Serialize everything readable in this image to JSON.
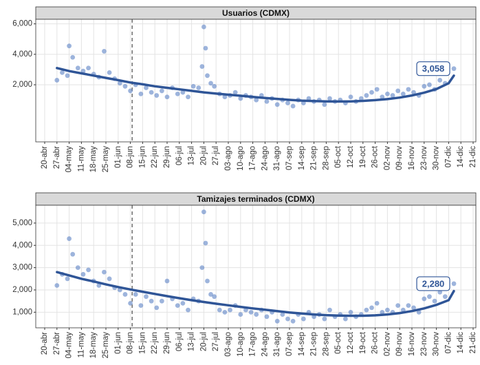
{
  "chart_data": [
    {
      "type": "scatter",
      "title": "Usuarios (CDMX)",
      "xticks": [
        "20-abr",
        "27-abr",
        "04-may",
        "11-may",
        "18-may",
        "25-may",
        "01-jun",
        "08-jun",
        "15-jun",
        "22-jun",
        "29-jun",
        "06-jul",
        "13-jul",
        "20-jul",
        "27-jul",
        "03-ago",
        "10-ago",
        "17-ago",
        "24-ago",
        "31-ago",
        "07-sep",
        "14-sep",
        "21-sep",
        "28-sep",
        "05-oct",
        "12-oct",
        "19-oct",
        "26-oct",
        "02-nov",
        "09-nov",
        "16-nov",
        "23-nov",
        "30-nov",
        "07-dic",
        "14-dic",
        "21-dic"
      ],
      "ylim": [
        -1750,
        6300
      ],
      "yticks": [
        {
          "value": 2000,
          "label": "2,000"
        },
        {
          "value": 4000,
          "label": "4,000"
        },
        {
          "value": 6000,
          "label": "6,000"
        }
      ],
      "grid": true,
      "vline": "09-jun",
      "points": {
        "color": "#5b82c4",
        "x": [
          "27-abr",
          "30-abr",
          "03-may",
          "04-may",
          "06-may",
          "09-may",
          "12-may",
          "15-may",
          "18-may",
          "21-may",
          "24-may",
          "27-may",
          "30-may",
          "02-jun",
          "05-jun",
          "08-jun",
          "11-jun",
          "14-jun",
          "17-jun",
          "20-jun",
          "23-jun",
          "26-jun",
          "29-jun",
          "02-jul",
          "05-jul",
          "08-jul",
          "11-jul",
          "14-jul",
          "17-jul",
          "19-jul",
          "20-jul",
          "21-jul",
          "22-jul",
          "24-jul",
          "26-jul",
          "29-jul",
          "01-ago",
          "04-ago",
          "07-ago",
          "10-ago",
          "13-ago",
          "16-ago",
          "19-ago",
          "22-ago",
          "25-ago",
          "28-ago",
          "31-ago",
          "03-sep",
          "06-sep",
          "09-sep",
          "12-sep",
          "15-sep",
          "18-sep",
          "21-sep",
          "24-sep",
          "27-sep",
          "30-sep",
          "03-oct",
          "06-oct",
          "09-oct",
          "12-oct",
          "15-oct",
          "18-oct",
          "21-oct",
          "24-oct",
          "27-oct",
          "30-oct",
          "02-nov",
          "05-nov",
          "08-nov",
          "11-nov",
          "14-nov",
          "17-nov",
          "20-nov",
          "23-nov",
          "26-nov",
          "29-nov",
          "02-dic",
          "05-dic",
          "10-dic"
        ],
        "y": [
          2300,
          2800,
          2600,
          4550,
          3800,
          3100,
          2900,
          3100,
          2700,
          2500,
          4200,
          2800,
          2400,
          2100,
          1900,
          1600,
          2000,
          1400,
          1800,
          1500,
          1300,
          1600,
          1200,
          1800,
          1400,
          1500,
          1200,
          1900,
          1800,
          3200,
          5800,
          4400,
          2600,
          2100,
          1900,
          1400,
          1200,
          1300,
          1500,
          1100,
          1300,
          1200,
          1000,
          1300,
          900,
          1100,
          700,
          1000,
          800,
          600,
          1000,
          800,
          1100,
          900,
          1000,
          700,
          1100,
          900,
          1000,
          800,
          1200,
          900,
          1100,
          1300,
          1500,
          1700,
          1200,
          1400,
          1300,
          1600,
          1400,
          1700,
          1500,
          1300,
          1900,
          2000,
          1700,
          2300,
          2100,
          3058
        ],
        "value_labels": [
          null,
          null,
          null,
          null,
          null,
          null,
          null,
          null,
          null,
          null,
          null,
          null,
          null,
          null,
          null,
          null,
          null,
          null,
          null,
          null,
          null,
          null,
          null,
          null,
          null,
          null,
          null,
          null,
          null,
          null,
          null,
          null,
          null,
          null,
          null,
          null,
          null,
          null,
          null,
          null,
          null,
          null,
          null,
          null,
          null,
          null,
          null,
          null,
          null,
          null,
          null,
          null,
          null,
          null,
          null,
          null,
          null,
          null,
          null,
          null,
          null,
          null,
          null,
          null,
          null,
          null,
          null,
          null,
          null,
          null,
          null,
          null,
          null,
          null,
          null,
          null,
          null,
          null,
          null,
          "3,058"
        ]
      },
      "trend": {
        "color": "#2f5597",
        "x": [
          "27-abr",
          "04-may",
          "11-may",
          "18-may",
          "25-may",
          "01-jun",
          "08-jun",
          "15-jun",
          "22-jun",
          "29-jun",
          "06-jul",
          "13-jul",
          "20-jul",
          "27-jul",
          "03-ago",
          "10-ago",
          "17-ago",
          "24-ago",
          "31-ago",
          "07-sep",
          "14-sep",
          "21-sep",
          "28-sep",
          "05-oct",
          "12-oct",
          "19-oct",
          "26-oct",
          "02-nov",
          "09-nov",
          "16-nov",
          "23-nov",
          "30-nov",
          "07-dic",
          "10-dic"
        ],
        "y": [
          3100,
          2900,
          2750,
          2600,
          2450,
          2300,
          2150,
          2030,
          1900,
          1800,
          1700,
          1600,
          1500,
          1420,
          1350,
          1280,
          1200,
          1130,
          1070,
          1010,
          960,
          930,
          910,
          900,
          910,
          940,
          990,
          1060,
          1160,
          1300,
          1480,
          1720,
          2100,
          2600
        ]
      }
    },
    {
      "type": "scatter",
      "title": "Tamizajes terminados (CDMX)",
      "xticks": [
        "20-abr",
        "27-abr",
        "04-may",
        "11-may",
        "18-may",
        "25-may",
        "01-jun",
        "08-jun",
        "15-jun",
        "22-jun",
        "29-jun",
        "06-jul",
        "13-jul",
        "20-jul",
        "27-jul",
        "03-ago",
        "10-ago",
        "17-ago",
        "24-ago",
        "31-ago",
        "07-sep",
        "14-sep",
        "21-sep",
        "28-sep",
        "05-oct",
        "12-oct",
        "19-oct",
        "26-oct",
        "02-nov",
        "09-nov",
        "16-nov",
        "23-nov",
        "30-nov",
        "07-dic",
        "14-dic",
        "21-dic"
      ],
      "ylim": [
        300,
        5800
      ],
      "yticks": [
        {
          "value": 1000,
          "label": "1,000"
        },
        {
          "value": 2000,
          "label": "2,000"
        },
        {
          "value": 3000,
          "label": "3,000"
        },
        {
          "value": 4000,
          "label": "4,000"
        },
        {
          "value": 5000,
          "label": "5,000"
        }
      ],
      "grid": true,
      "vline": "09-jun",
      "points": {
        "color": "#5b82c4",
        "x": [
          "27-abr",
          "30-abr",
          "03-may",
          "04-may",
          "06-may",
          "09-may",
          "12-may",
          "15-may",
          "18-may",
          "21-may",
          "24-may",
          "27-may",
          "30-may",
          "02-jun",
          "05-jun",
          "08-jun",
          "11-jun",
          "14-jun",
          "17-jun",
          "20-jun",
          "23-jun",
          "26-jun",
          "29-jun",
          "02-jul",
          "05-jul",
          "08-jul",
          "11-jul",
          "14-jul",
          "17-jul",
          "19-jul",
          "20-jul",
          "21-jul",
          "22-jul",
          "24-jul",
          "26-jul",
          "29-jul",
          "01-ago",
          "04-ago",
          "07-ago",
          "10-ago",
          "13-ago",
          "16-ago",
          "19-ago",
          "22-ago",
          "25-ago",
          "28-ago",
          "31-ago",
          "03-sep",
          "06-sep",
          "09-sep",
          "12-sep",
          "15-sep",
          "18-sep",
          "21-sep",
          "24-sep",
          "27-sep",
          "30-sep",
          "03-oct",
          "06-oct",
          "09-oct",
          "12-oct",
          "15-oct",
          "18-oct",
          "21-oct",
          "24-oct",
          "27-oct",
          "30-oct",
          "02-nov",
          "05-nov",
          "08-nov",
          "11-nov",
          "14-nov",
          "17-nov",
          "20-nov",
          "23-nov",
          "26-nov",
          "29-nov",
          "02-dic",
          "05-dic",
          "10-dic"
        ],
        "y": [
          2200,
          2700,
          2500,
          4300,
          3600,
          3000,
          2700,
          2900,
          2400,
          2200,
          2800,
          2500,
          2100,
          2000,
          1800,
          1400,
          1800,
          1300,
          1700,
          1500,
          1200,
          1500,
          2400,
          1600,
          1300,
          1400,
          1100,
          1600,
          1500,
          3000,
          5500,
          4100,
          2400,
          1800,
          1700,
          1100,
          1000,
          1100,
          1300,
          900,
          1100,
          1000,
          900,
          1100,
          800,
          1000,
          600,
          900,
          700,
          600,
          900,
          700,
          1000,
          800,
          900,
          700,
          1100,
          800,
          900,
          700,
          1000,
          800,
          900,
          1100,
          1200,
          1400,
          1000,
          1100,
          1000,
          1300,
          1100,
          1300,
          1200,
          1000,
          1600,
          1700,
          1500,
          1900,
          1700,
          2280
        ],
        "value_labels": [
          null,
          null,
          null,
          null,
          null,
          null,
          null,
          null,
          null,
          null,
          null,
          null,
          null,
          null,
          null,
          null,
          null,
          null,
          null,
          null,
          null,
          null,
          null,
          null,
          null,
          null,
          null,
          null,
          null,
          null,
          null,
          null,
          null,
          null,
          null,
          null,
          null,
          null,
          null,
          null,
          null,
          null,
          null,
          null,
          null,
          null,
          null,
          null,
          null,
          null,
          null,
          null,
          null,
          null,
          null,
          null,
          null,
          null,
          null,
          null,
          null,
          null,
          null,
          null,
          null,
          null,
          null,
          null,
          null,
          null,
          null,
          null,
          null,
          null,
          null,
          null,
          null,
          null,
          null,
          "2,280"
        ]
      },
      "trend": {
        "color": "#2f5597",
        "x": [
          "27-abr",
          "04-may",
          "11-may",
          "18-may",
          "25-may",
          "01-jun",
          "08-jun",
          "15-jun",
          "22-jun",
          "29-jun",
          "06-jul",
          "13-jul",
          "20-jul",
          "27-jul",
          "03-ago",
          "10-ago",
          "17-ago",
          "24-ago",
          "31-ago",
          "07-sep",
          "14-sep",
          "21-sep",
          "28-sep",
          "05-oct",
          "12-oct",
          "19-oct",
          "26-oct",
          "02-nov",
          "09-nov",
          "16-nov",
          "23-nov",
          "30-nov",
          "07-dic",
          "10-dic"
        ],
        "y": [
          2800,
          2650,
          2500,
          2380,
          2250,
          2130,
          2020,
          1920,
          1820,
          1720,
          1630,
          1540,
          1460,
          1380,
          1310,
          1240,
          1170,
          1110,
          1050,
          990,
          940,
          900,
          870,
          850,
          840,
          840,
          860,
          900,
          960,
          1050,
          1170,
          1330,
          1540,
          1950
        ]
      }
    }
  ]
}
